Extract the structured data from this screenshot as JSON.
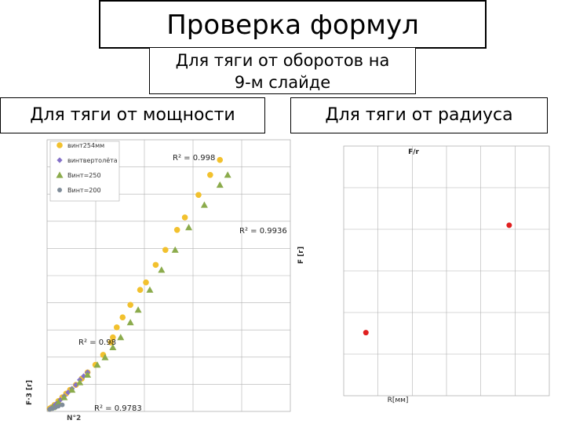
{
  "slide": {
    "title": "Проверка формул",
    "subtitle_line1": "Для тяги от оборотов на",
    "subtitle_line2": "9-м слайде",
    "left_heading": "Для тяги от мощности",
    "right_heading": "Для тяги от радиуса"
  },
  "chart_data": [
    {
      "type": "scatter",
      "ylabel": "F·3 [г]",
      "xlim": [
        0,
        1
      ],
      "ylim": [
        0,
        1
      ],
      "grid": true,
      "legend": "top-left",
      "colors": {
        "yellow": "#f2c12e",
        "purple": "#8470c8",
        "green": "#8bab4c",
        "gray": "#7f8c99"
      },
      "series": [
        {
          "name": "винт254мм",
          "marker": "circle",
          "color": "#f2c12e",
          "r2_label": "R² = 0.998",
          "points": [
            [
              0.005,
              0.005
            ],
            [
              0.015,
              0.01
            ],
            [
              0.03,
              0.02
            ],
            [
              0.05,
              0.035
            ],
            [
              0.07,
              0.05
            ],
            [
              0.09,
              0.065
            ],
            [
              0.11,
              0.08
            ],
            [
              0.14,
              0.1
            ],
            [
              0.17,
              0.125
            ],
            [
              0.2,
              0.15
            ],
            [
              0.24,
              0.18
            ],
            [
              0.28,
              0.22
            ],
            [
              0.32,
              0.27
            ],
            [
              0.33,
              0.29
            ],
            [
              0.35,
              0.33
            ],
            [
              0.38,
              0.37
            ],
            [
              0.42,
              0.42
            ],
            [
              0.47,
              0.48
            ],
            [
              0.5,
              0.51
            ],
            [
              0.55,
              0.58
            ],
            [
              0.6,
              0.64
            ],
            [
              0.66,
              0.72
            ],
            [
              0.7,
              0.77
            ],
            [
              0.77,
              0.86
            ],
            [
              0.83,
              0.94
            ],
            [
              0.88,
              1.0
            ]
          ]
        },
        {
          "name": "винтвертолёта",
          "marker": "diamond",
          "color": "#8470c8",
          "r2_label": "R² = 0.98",
          "points": [
            [
              0.005,
              0.003
            ],
            [
              0.015,
              0.008
            ],
            [
              0.025,
              0.015
            ],
            [
              0.04,
              0.025
            ],
            [
              0.06,
              0.04
            ],
            [
              0.08,
              0.055
            ],
            [
              0.1,
              0.07
            ],
            [
              0.12,
              0.085
            ],
            [
              0.14,
              0.1
            ],
            [
              0.16,
              0.12
            ],
            [
              0.18,
              0.135
            ],
            [
              0.2,
              0.15
            ]
          ]
        },
        {
          "name": "Винт=250",
          "marker": "triangle",
          "color": "#8bab4c",
          "r2_label": "R² = 0.9936",
          "points": [
            [
              0.02,
              0.01
            ],
            [
              0.05,
              0.03
            ],
            [
              0.08,
              0.05
            ],
            [
              0.12,
              0.08
            ],
            [
              0.16,
              0.11
            ],
            [
              0.2,
              0.14
            ],
            [
              0.25,
              0.18
            ],
            [
              0.29,
              0.21
            ],
            [
              0.33,
              0.25
            ],
            [
              0.37,
              0.29
            ],
            [
              0.42,
              0.35
            ],
            [
              0.46,
              0.4
            ],
            [
              0.52,
              0.48
            ],
            [
              0.58,
              0.56
            ],
            [
              0.65,
              0.64
            ],
            [
              0.72,
              0.73
            ],
            [
              0.8,
              0.82
            ],
            [
              0.88,
              0.9
            ],
            [
              0.92,
              0.94
            ]
          ]
        },
        {
          "name": "Винт=200",
          "marker": "circle-small",
          "color": "#7f8c99",
          "r2_label": "R² = 0.9783",
          "points": [
            [
              0.005,
              0.002
            ],
            [
              0.02,
              0.005
            ],
            [
              0.035,
              0.01
            ],
            [
              0.05,
              0.015
            ],
            [
              0.07,
              0.02
            ]
          ]
        }
      ],
      "annotations": [
        "N°2"
      ]
    },
    {
      "type": "scatter",
      "title": "F/r",
      "xlabel": "R[мм]",
      "ylabel": "F [г]",
      "xlim": [
        0,
        1
      ],
      "ylim": [
        0,
        1
      ],
      "grid": true,
      "series": [
        {
          "color": "#e02020",
          "points": [
            [
              0.1,
              0.3
            ],
            [
              0.92,
              0.73
            ]
          ]
        }
      ]
    }
  ]
}
